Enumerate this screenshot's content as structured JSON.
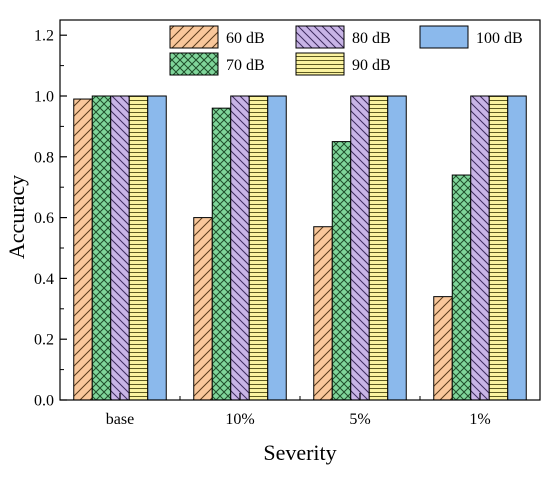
{
  "chart_data": {
    "type": "bar",
    "title": "",
    "xlabel": "Severity",
    "ylabel": "Accuracy",
    "categories": [
      "base",
      "10%",
      "5%",
      "1%"
    ],
    "ylim": [
      0,
      1.25
    ],
    "yticks": [
      0.0,
      0.2,
      0.4,
      0.6,
      0.8,
      1.0,
      1.2
    ],
    "ytick_labels": [
      "0.0",
      "0.2",
      "0.4",
      "0.6",
      "0.8",
      "1.0",
      "1.2"
    ],
    "grid": false,
    "legend_position": "top-right",
    "series": [
      {
        "name": "60 dB",
        "values": [
          0.99,
          0.6,
          0.57,
          0.34
        ],
        "color": "#f9c79b",
        "pattern": "diagonal-lines"
      },
      {
        "name": "70 dB",
        "values": [
          1.0,
          0.96,
          0.85,
          0.74
        ],
        "color": "#7fd59a",
        "pattern": "crosshatch"
      },
      {
        "name": "80 dB",
        "values": [
          1.0,
          1.0,
          1.0,
          1.0
        ],
        "color": "#c8b4e6",
        "pattern": "diagonal-lines"
      },
      {
        "name": "90 dB",
        "values": [
          1.0,
          1.0,
          1.0,
          1.0
        ],
        "color": "#fbf3a0",
        "pattern": "horizontal-lines"
      },
      {
        "name": "100 dB",
        "values": [
          1.0,
          1.0,
          1.0,
          1.0
        ],
        "color": "#8bb9ec",
        "pattern": "solid"
      }
    ]
  }
}
